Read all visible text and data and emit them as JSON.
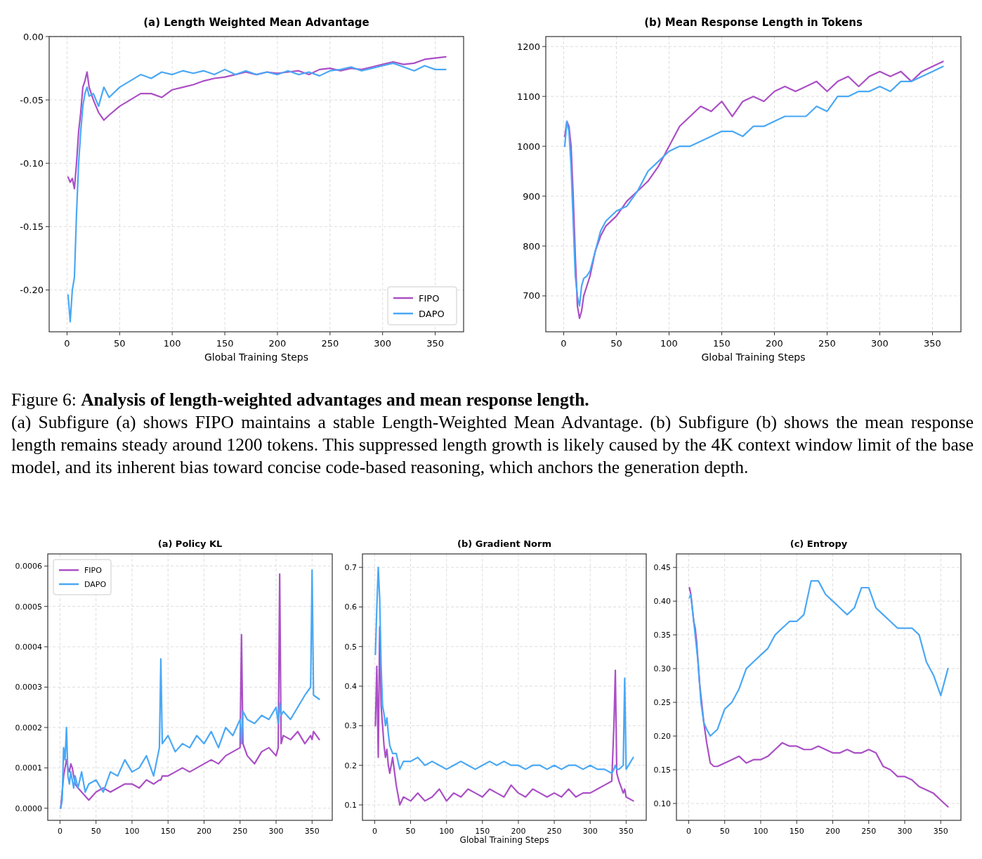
{
  "chart_data": [
    {
      "type": "line",
      "title": "(a) Length Weighted Mean Advantage",
      "xlabel": "Global Training Steps",
      "grid": true,
      "legend": "bottom right",
      "xlim": [
        -17,
        377
      ],
      "ylim": [
        -0.233,
        0
      ],
      "xticks": [
        0,
        50,
        100,
        150,
        200,
        250,
        300,
        350
      ],
      "yticks": [
        {
          "value": -0.2,
          "label": "-0.20"
        },
        {
          "value": -0.15,
          "label": "-0.15"
        },
        {
          "value": -0.1,
          "label": "-0.10"
        },
        {
          "value": -0.05,
          "label": "-0.05"
        },
        {
          "value": 0,
          "label": "0.00"
        }
      ],
      "annotations": [
        "Figure 6:",
        "Analysis of length-weighted advantages and mean response length.",
        "(a) Subfigure (a) shows FIPO maintains a stable Length-Weighted Mean Advantage. (b) Subfigure (b) shows the mean response length remains steady around 1200 tokens. This suppressed length growth is likely caused by the 4K context window limit of the base model, and its inherent bias toward concise code-based reasoning, which anchors the generation depth."
      ],
      "x": [
        1,
        3,
        5,
        7,
        9,
        11,
        13,
        15,
        17,
        19,
        21,
        25,
        30,
        35,
        40,
        50,
        60,
        70,
        80,
        90,
        100,
        110,
        120,
        130,
        140,
        150,
        160,
        170,
        180,
        190,
        200,
        210,
        220,
        230,
        240,
        250,
        260,
        270,
        280,
        290,
        300,
        310,
        320,
        330,
        340,
        350,
        360
      ],
      "series": [
        {
          "name": "FIPO",
          "color": "#ab4fc6",
          "values": [
            -0.111,
            -0.115,
            -0.112,
            -0.12,
            -0.1,
            -0.075,
            -0.06,
            -0.04,
            -0.035,
            -0.028,
            -0.04,
            -0.05,
            -0.06,
            -0.066,
            -0.062,
            -0.055,
            -0.05,
            -0.045,
            -0.045,
            -0.048,
            -0.042,
            -0.04,
            -0.038,
            -0.035,
            -0.033,
            -0.032,
            -0.03,
            -0.028,
            -0.03,
            -0.028,
            -0.029,
            -0.028,
            -0.027,
            -0.03,
            -0.026,
            -0.025,
            -0.027,
            -0.025,
            -0.026,
            -0.024,
            -0.022,
            -0.02,
            -0.022,
            -0.021,
            -0.018,
            -0.017,
            -0.016
          ]
        },
        {
          "name": "DAPO",
          "color": "#4aa8f5",
          "values": [
            -0.204,
            -0.225,
            -0.2,
            -0.19,
            -0.14,
            -0.1,
            -0.075,
            -0.055,
            -0.045,
            -0.04,
            -0.047,
            -0.045,
            -0.055,
            -0.04,
            -0.048,
            -0.04,
            -0.035,
            -0.03,
            -0.033,
            -0.028,
            -0.03,
            -0.027,
            -0.029,
            -0.027,
            -0.03,
            -0.026,
            -0.03,
            -0.027,
            -0.03,
            -0.028,
            -0.03,
            -0.027,
            -0.03,
            -0.028,
            -0.031,
            -0.027,
            -0.026,
            -0.024,
            -0.027,
            -0.025,
            -0.023,
            -0.021,
            -0.024,
            -0.027,
            -0.023,
            -0.026,
            -0.026
          ]
        }
      ]
    },
    {
      "type": "line",
      "title": "(b) Mean Response Length in Tokens",
      "xlabel": "Global Training Steps",
      "grid": true,
      "xlim": [
        -17,
        377
      ],
      "ylim": [
        628,
        1220
      ],
      "xticks": [
        0,
        50,
        100,
        150,
        200,
        250,
        300,
        350
      ],
      "yticks": [
        700,
        800,
        900,
        1000,
        1100,
        1200
      ],
      "x": [
        1,
        3,
        5,
        7,
        9,
        11,
        13,
        15,
        17,
        19,
        22,
        25,
        30,
        35,
        40,
        50,
        60,
        70,
        80,
        90,
        100,
        110,
        120,
        130,
        140,
        150,
        160,
        170,
        180,
        190,
        200,
        210,
        220,
        230,
        240,
        250,
        260,
        270,
        280,
        290,
        300,
        310,
        320,
        330,
        340,
        350,
        360
      ],
      "series": [
        {
          "color": "#ab4fc6",
          "values": [
            1020,
            1050,
            1040,
            1000,
            900,
            780,
            680,
            655,
            670,
            700,
            720,
            740,
            790,
            820,
            840,
            860,
            890,
            910,
            930,
            960,
            1000,
            1040,
            1060,
            1080,
            1070,
            1090,
            1060,
            1090,
            1100,
            1090,
            1110,
            1120,
            1110,
            1120,
            1130,
            1110,
            1130,
            1140,
            1120,
            1140,
            1150,
            1140,
            1150,
            1130,
            1150,
            1160,
            1170
          ]
        },
        {
          "color": "#4aa8f5",
          "values": [
            1000,
            1050,
            1030,
            960,
            850,
            740,
            700,
            680,
            720,
            735,
            740,
            750,
            790,
            830,
            850,
            870,
            880,
            910,
            950,
            970,
            990,
            1000,
            1000,
            1010,
            1020,
            1030,
            1030,
            1020,
            1040,
            1040,
            1050,
            1060,
            1060,
            1060,
            1080,
            1070,
            1100,
            1100,
            1110,
            1110,
            1120,
            1110,
            1130,
            1130,
            1140,
            1150,
            1160
          ]
        }
      ]
    },
    {
      "type": "line",
      "title": "(a) Policy KL",
      "grid": true,
      "legend": "top left",
      "xlim": [
        -17,
        378
      ],
      "ylim": [
        -3e-05,
        0.00063
      ],
      "xticks": [
        0,
        50,
        100,
        150,
        200,
        250,
        300,
        350
      ],
      "yticks": [
        {
          "value": 0,
          "label": "0.0000"
        },
        {
          "value": 0.0001,
          "label": "0.0001"
        },
        {
          "value": 0.0002,
          "label": "0.0002"
        },
        {
          "value": 0.0003,
          "label": "0.0003"
        },
        {
          "value": 0.0004,
          "label": "0.0004"
        },
        {
          "value": 0.0005,
          "label": "0.0005"
        },
        {
          "value": 0.0006,
          "label": "0.0006"
        }
      ],
      "x": [
        1,
        3,
        5,
        7,
        9,
        11,
        13,
        15,
        17,
        19,
        21,
        25,
        30,
        35,
        40,
        50,
        60,
        70,
        80,
        90,
        100,
        110,
        120,
        130,
        138,
        140,
        142,
        150,
        160,
        170,
        180,
        190,
        200,
        210,
        220,
        230,
        240,
        250,
        252,
        254,
        260,
        270,
        280,
        290,
        300,
        303,
        305,
        307,
        310,
        320,
        330,
        340,
        348,
        350,
        352,
        360
      ],
      "series": [
        {
          "name": "FIPO",
          "color": "#ab4fc6",
          "values": [
            0,
            4e-05,
            8e-05,
            0.0001,
            0.00012,
            0.0001,
            9e-05,
            0.00011,
            0.0001,
            8e-05,
            6e-05,
            5e-05,
            4e-05,
            3e-05,
            2e-05,
            4e-05,
            5e-05,
            4e-05,
            5e-05,
            6e-05,
            6e-05,
            5e-05,
            7e-05,
            6e-05,
            7e-05,
            7e-05,
            8e-05,
            8e-05,
            9e-05,
            0.0001,
            9e-05,
            0.0001,
            0.00011,
            0.00012,
            0.00011,
            0.00013,
            0.00014,
            0.00015,
            0.00043,
            0.00016,
            0.00013,
            0.00011,
            0.00014,
            0.00015,
            0.00013,
            0.00015,
            0.00058,
            0.00016,
            0.00018,
            0.00017,
            0.00019,
            0.00016,
            0.00018,
            0.00017,
            0.00019,
            0.00017
          ]
        },
        {
          "name": "DAPO",
          "color": "#4aa8f5",
          "values": [
            0,
            2e-05,
            0.00015,
            0.00012,
            0.0002,
            8e-05,
            6e-05,
            9e-05,
            7e-05,
            5e-05,
            8e-05,
            5e-05,
            9e-05,
            4e-05,
            6e-05,
            7e-05,
            4e-05,
            9e-05,
            8e-05,
            0.00012,
            9e-05,
            0.0001,
            0.00013,
            8e-05,
            0.00015,
            0.00037,
            0.00016,
            0.00018,
            0.00014,
            0.00016,
            0.00015,
            0.00018,
            0.00016,
            0.00019,
            0.00015,
            0.0002,
            0.00018,
            0.00022,
            0.00016,
            0.00024,
            0.00022,
            0.00021,
            0.00023,
            0.00022,
            0.00025,
            0.00021,
            0.00026,
            0.00023,
            0.00024,
            0.00022,
            0.00025,
            0.00028,
            0.0003,
            0.00059,
            0.00028,
            0.00027
          ]
        }
      ]
    },
    {
      "type": "line",
      "title": "(b) Gradient Norm",
      "xlabel": "Global Training Steps",
      "grid": true,
      "xlim": [
        -17,
        378
      ],
      "ylim": [
        0.061,
        0.734
      ],
      "xticks": [
        0,
        50,
        100,
        150,
        200,
        250,
        300,
        350
      ],
      "yticks": [
        0.1,
        0.2,
        0.3,
        0.4,
        0.5,
        0.6,
        0.7
      ],
      "x": [
        1,
        3,
        5,
        7,
        9,
        11,
        13,
        15,
        17,
        19,
        21,
        25,
        30,
        35,
        40,
        50,
        60,
        70,
        80,
        90,
        100,
        110,
        120,
        130,
        140,
        150,
        160,
        170,
        180,
        190,
        200,
        210,
        220,
        230,
        240,
        250,
        260,
        270,
        280,
        290,
        300,
        310,
        320,
        330,
        333,
        335,
        337,
        340,
        346,
        348,
        350,
        360
      ],
      "series": [
        {
          "color": "#ab4fc6",
          "values": [
            0.3,
            0.45,
            0.22,
            0.55,
            0.35,
            0.3,
            0.25,
            0.22,
            0.24,
            0.2,
            0.18,
            0.22,
            0.15,
            0.1,
            0.12,
            0.11,
            0.13,
            0.11,
            0.12,
            0.14,
            0.11,
            0.13,
            0.12,
            0.14,
            0.13,
            0.12,
            0.14,
            0.13,
            0.12,
            0.15,
            0.13,
            0.12,
            0.14,
            0.13,
            0.12,
            0.13,
            0.12,
            0.14,
            0.12,
            0.13,
            0.13,
            0.14,
            0.15,
            0.16,
            0.3,
            0.44,
            0.18,
            0.16,
            0.13,
            0.14,
            0.12,
            0.11
          ]
        },
        {
          "color": "#4aa8f5",
          "values": [
            0.48,
            0.6,
            0.7,
            0.62,
            0.45,
            0.35,
            0.33,
            0.3,
            0.32,
            0.28,
            0.25,
            0.23,
            0.23,
            0.19,
            0.21,
            0.21,
            0.22,
            0.2,
            0.21,
            0.2,
            0.19,
            0.2,
            0.21,
            0.2,
            0.19,
            0.2,
            0.21,
            0.2,
            0.21,
            0.2,
            0.2,
            0.19,
            0.2,
            0.2,
            0.19,
            0.2,
            0.19,
            0.2,
            0.2,
            0.19,
            0.2,
            0.19,
            0.19,
            0.18,
            0.19,
            0.2,
            0.19,
            0.19,
            0.2,
            0.42,
            0.19,
            0.22
          ]
        }
      ]
    },
    {
      "type": "line",
      "title": "(c) Entropy",
      "grid": true,
      "xlim": [
        -17,
        378
      ],
      "ylim": [
        0.075,
        0.47
      ],
      "xticks": [
        0,
        50,
        100,
        150,
        200,
        250,
        300,
        350
      ],
      "yticks": [
        {
          "value": 0.1,
          "label": "0.10"
        },
        {
          "value": 0.15,
          "label": "0.15"
        },
        {
          "value": 0.2,
          "label": "0.20"
        },
        {
          "value": 0.25,
          "label": "0.25"
        },
        {
          "value": 0.3,
          "label": "0.30"
        },
        {
          "value": 0.35,
          "label": "0.35"
        },
        {
          "value": 0.4,
          "label": "0.40"
        },
        {
          "value": 0.45,
          "label": "0.45"
        }
      ],
      "x": [
        1,
        3,
        5,
        7,
        9,
        11,
        13,
        15,
        17,
        19,
        21,
        25,
        30,
        35,
        40,
        50,
        60,
        70,
        80,
        90,
        100,
        110,
        120,
        130,
        140,
        150,
        160,
        170,
        180,
        190,
        200,
        210,
        220,
        230,
        240,
        250,
        260,
        270,
        280,
        290,
        300,
        310,
        320,
        330,
        340,
        350,
        360
      ],
      "series": [
        {
          "color": "#ab4fc6",
          "values": [
            0.42,
            0.41,
            0.39,
            0.37,
            0.36,
            0.34,
            0.31,
            0.28,
            0.26,
            0.24,
            0.22,
            0.19,
            0.16,
            0.155,
            0.155,
            0.16,
            0.165,
            0.17,
            0.16,
            0.165,
            0.165,
            0.17,
            0.18,
            0.19,
            0.185,
            0.185,
            0.18,
            0.18,
            0.185,
            0.18,
            0.175,
            0.175,
            0.18,
            0.175,
            0.175,
            0.18,
            0.175,
            0.155,
            0.15,
            0.14,
            0.14,
            0.135,
            0.125,
            0.12,
            0.115,
            0.105,
            0.095
          ]
        },
        {
          "color": "#4aa8f5",
          "values": [
            0.405,
            0.41,
            0.39,
            0.37,
            0.35,
            0.33,
            0.31,
            0.28,
            0.25,
            0.235,
            0.22,
            0.21,
            0.2,
            0.205,
            0.21,
            0.24,
            0.25,
            0.27,
            0.3,
            0.31,
            0.32,
            0.33,
            0.35,
            0.36,
            0.37,
            0.37,
            0.38,
            0.43,
            0.43,
            0.41,
            0.4,
            0.39,
            0.38,
            0.39,
            0.42,
            0.42,
            0.39,
            0.38,
            0.37,
            0.36,
            0.36,
            0.36,
            0.35,
            0.31,
            0.29,
            0.26,
            0.3
          ]
        }
      ]
    }
  ]
}
